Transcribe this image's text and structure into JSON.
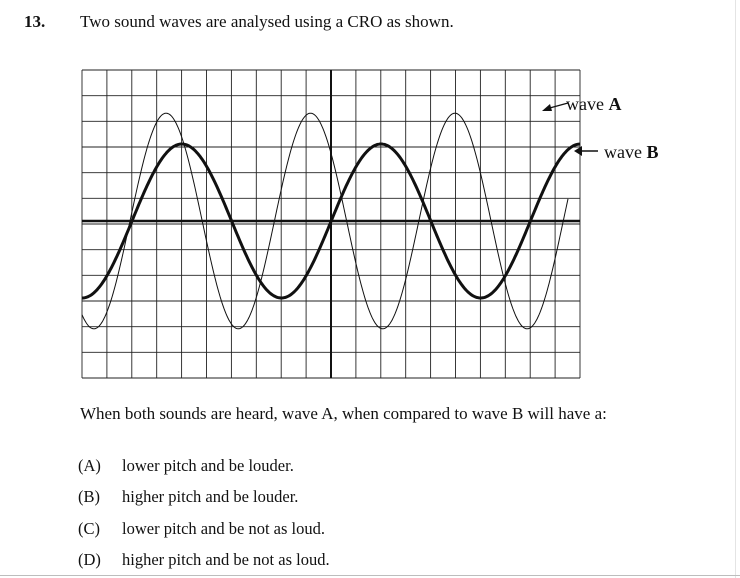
{
  "question": {
    "number": "13.",
    "stem": "Two sound waves are analysed using a CRO as shown.",
    "prompt": "When both sounds are heard, wave A, when compared to wave B will have a:",
    "options": [
      {
        "letter": "(A)",
        "text": "lower pitch and be louder."
      },
      {
        "letter": "(B)",
        "text": "higher pitch and be louder."
      },
      {
        "letter": "(C)",
        "text": "lower pitch and be not as loud."
      },
      {
        "letter": "(D)",
        "text": "higher pitch and be not as loud."
      }
    ]
  },
  "figure": {
    "wave_a_label_prefix": "wave ",
    "wave_a_label_letter": "A",
    "wave_b_label_prefix": "wave ",
    "wave_b_label_letter": "B",
    "grid_columns": 20,
    "grid_rows": 12,
    "wave_a": {
      "amplitude_divisions": 4.2,
      "period_divisions": 5.8,
      "stroke": "thin"
    },
    "wave_b": {
      "amplitude_divisions": 3.0,
      "period_divisions": 8.0,
      "stroke": "thick"
    }
  }
}
